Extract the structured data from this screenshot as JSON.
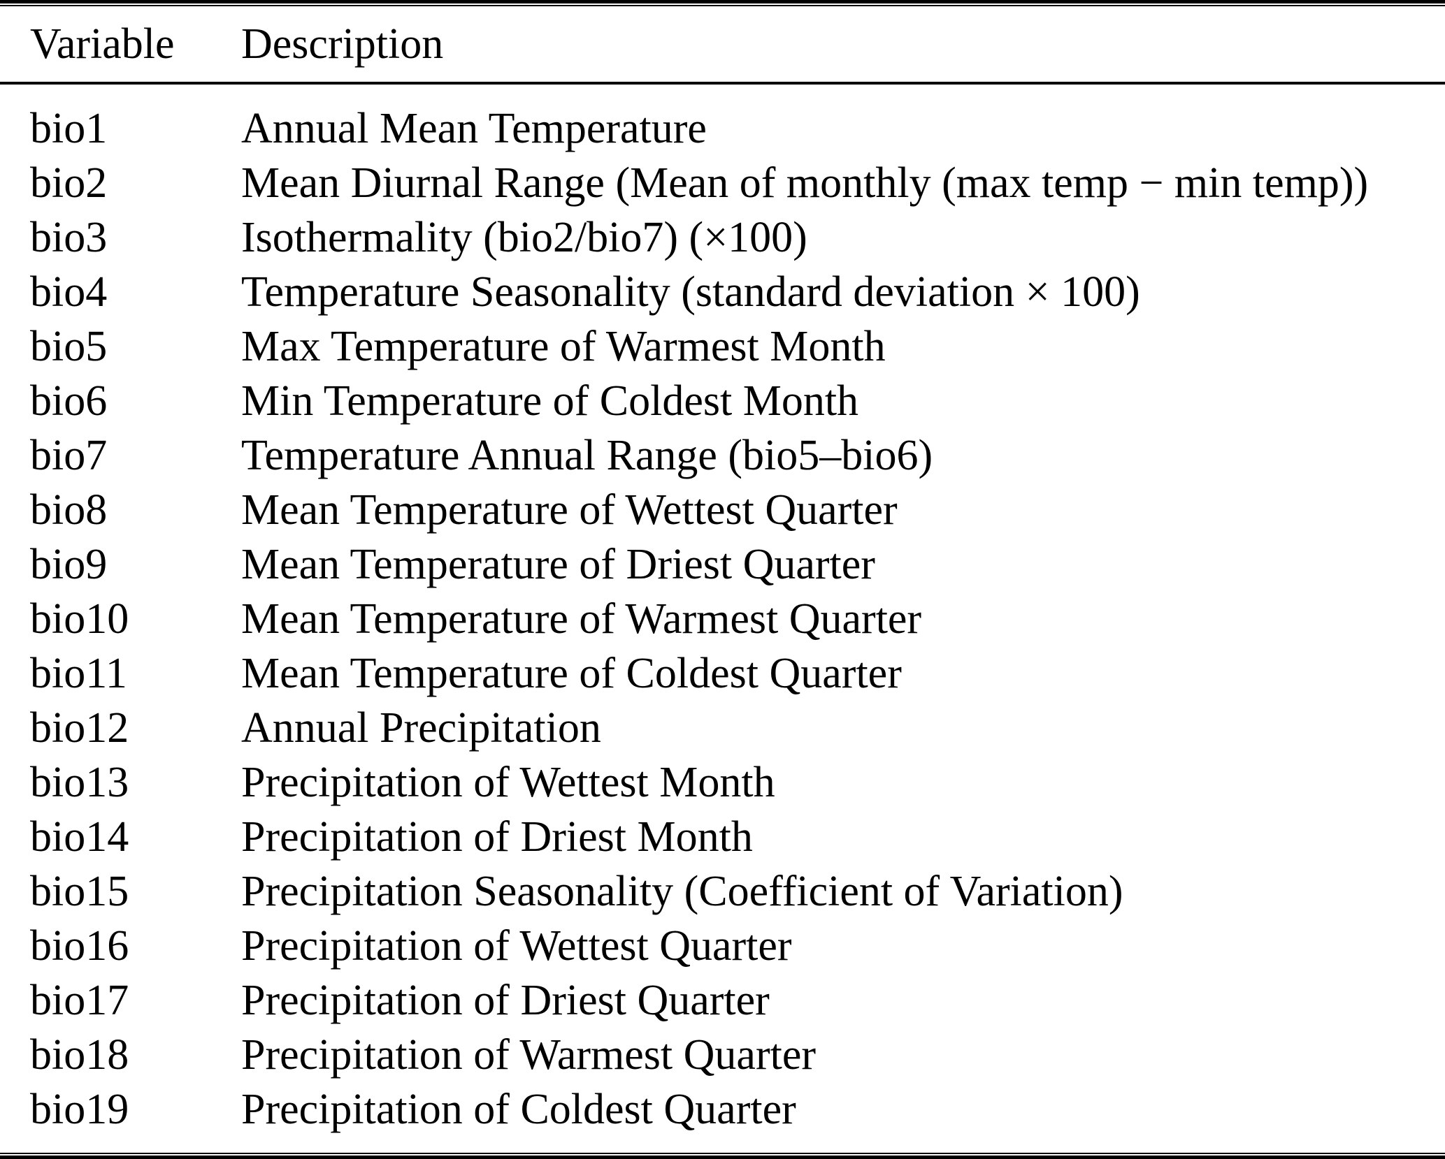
{
  "table": {
    "columns": [
      {
        "label": "Variable"
      },
      {
        "label": "Description"
      }
    ],
    "rows": [
      {
        "variable": "bio1",
        "description": "Annual Mean Temperature"
      },
      {
        "variable": "bio2",
        "description": "Mean Diurnal Range (Mean of monthly (max temp − min temp))"
      },
      {
        "variable": "bio3",
        "description": "Isothermality (bio2/bio7) (×100)"
      },
      {
        "variable": "bio4",
        "description": "Temperature Seasonality (standard deviation × 100)"
      },
      {
        "variable": "bio5",
        "description": "Max Temperature of Warmest Month"
      },
      {
        "variable": "bio6",
        "description": "Min Temperature of Coldest Month"
      },
      {
        "variable": "bio7",
        "description": "Temperature Annual Range (bio5–bio6)"
      },
      {
        "variable": "bio8",
        "description": "Mean Temperature of Wettest Quarter"
      },
      {
        "variable": "bio9",
        "description": "Mean Temperature of Driest Quarter"
      },
      {
        "variable": "bio10",
        "description": "Mean Temperature of Warmest Quarter"
      },
      {
        "variable": "bio11",
        "description": "Mean Temperature of Coldest Quarter"
      },
      {
        "variable": "bio12",
        "description": "Annual Precipitation"
      },
      {
        "variable": "bio13",
        "description": "Precipitation of Wettest Month"
      },
      {
        "variable": "bio14",
        "description": "Precipitation of Driest Month"
      },
      {
        "variable": "bio15",
        "description": "Precipitation Seasonality (Coefficient of Variation)"
      },
      {
        "variable": "bio16",
        "description": "Precipitation of Wettest Quarter"
      },
      {
        "variable": "bio17",
        "description": "Precipitation of Driest Quarter"
      },
      {
        "variable": "bio18",
        "description": "Precipitation of Warmest Quarter"
      },
      {
        "variable": "bio19",
        "description": "Precipitation of Coldest Quarter"
      }
    ]
  }
}
